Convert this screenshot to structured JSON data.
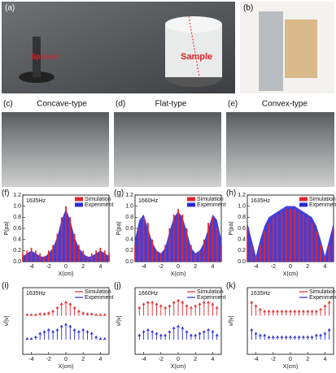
{
  "photos": [
    {
      "label": "(a)",
      "annotations": [
        "Speaker",
        "Sample"
      ]
    },
    {
      "label": "(b)"
    },
    {
      "label": "(c)",
      "title": "Concave-type"
    },
    {
      "label": "(d)",
      "title": "Flat-type"
    },
    {
      "label": "(e)",
      "title": "Convex-type"
    }
  ],
  "chart_data": [
    {
      "type": "bar_area",
      "label": "(f)",
      "annotation": "1635Hz",
      "xlabel": "X(cm)",
      "ylabel": "P(pa)",
      "x": [
        -5,
        -4.5,
        -4,
        -3.5,
        -3,
        -2.5,
        -2,
        -1.5,
        -1,
        -0.5,
        0,
        0.5,
        1,
        1.5,
        2,
        2.5,
        3,
        3.5,
        4,
        4.5,
        5
      ],
      "series": [
        {
          "name": "Simulation",
          "color": "#e3262b",
          "values": [
            0.15,
            0.2,
            0.25,
            0.2,
            0.15,
            0.1,
            0.2,
            0.3,
            0.5,
            0.8,
            1.0,
            0.8,
            0.5,
            0.3,
            0.2,
            0.1,
            0.15,
            0.2,
            0.25,
            0.2,
            0.15
          ]
        },
        {
          "name": "Experiment",
          "color": "#2a2ad6",
          "values": [
            0.1,
            0.15,
            0.2,
            0.15,
            0.1,
            0.08,
            0.15,
            0.25,
            0.45,
            0.75,
            0.95,
            0.75,
            0.45,
            0.25,
            0.15,
            0.08,
            0.1,
            0.15,
            0.2,
            0.15,
            0.1
          ]
        }
      ],
      "xlim": [
        -5,
        5
      ],
      "ylim": [
        0,
        1.2
      ],
      "xticks": [
        -4,
        -2,
        0,
        2,
        4
      ],
      "yticks": [
        {
          "value": 0,
          "label": "0.0"
        },
        0.2,
        0.4,
        0.6,
        0.8,
        {
          "value": 1,
          "label": "1.0"
        },
        1.2
      ]
    },
    {
      "type": "bar_area",
      "label": "(g)",
      "annotation": "1660Hz",
      "xlabel": "X(cm)",
      "ylabel": "P(pa)",
      "x": [
        -5,
        -4.5,
        -4,
        -3.5,
        -3,
        -2.5,
        -2,
        -1.5,
        -1,
        -0.5,
        0,
        0.5,
        1,
        1.5,
        2,
        2.5,
        3,
        3.5,
        4,
        4.5,
        5
      ],
      "series": [
        {
          "name": "Simulation",
          "color": "#e3262b",
          "values": [
            0.3,
            0.6,
            0.8,
            0.7,
            0.4,
            0.2,
            0.15,
            0.3,
            0.6,
            0.85,
            0.95,
            0.85,
            0.6,
            0.3,
            0.15,
            0.2,
            0.4,
            0.7,
            0.8,
            0.6,
            0.3
          ]
        },
        {
          "name": "Experiment",
          "color": "#2a2ad6",
          "values": [
            0.4,
            0.75,
            0.85,
            0.6,
            0.35,
            0.2,
            0.15,
            0.25,
            0.55,
            0.8,
            0.9,
            0.8,
            0.55,
            0.25,
            0.15,
            0.2,
            0.35,
            0.6,
            0.85,
            0.75,
            0.4
          ]
        }
      ],
      "xlim": [
        -5,
        5
      ],
      "ylim": [
        0,
        1.2
      ],
      "xticks": [
        -4,
        -2,
        0,
        2,
        4
      ],
      "yticks": [
        {
          "value": 0,
          "label": "0.0"
        },
        0.2,
        0.4,
        0.6,
        0.8,
        {
          "value": 1,
          "label": "1.0"
        },
        1.2
      ]
    },
    {
      "type": "bar_area",
      "label": "(h)",
      "annotation": "1635Hz",
      "xlabel": "X(cm)",
      "ylabel": "P(pa)",
      "x": [
        -5,
        -4.5,
        -4,
        -3.5,
        -3,
        -2.5,
        -2,
        -1.5,
        -1,
        -0.5,
        0,
        0.5,
        1,
        1.5,
        2,
        2.5,
        3,
        3.5,
        4,
        4.5,
        5
      ],
      "series": [
        {
          "name": "Simulation",
          "color": "#e3262b",
          "values": [
            0.6,
            0.3,
            0.1,
            0.3,
            0.55,
            0.7,
            0.8,
            0.85,
            0.9,
            0.95,
            0.95,
            0.95,
            0.9,
            0.85,
            0.8,
            0.7,
            0.55,
            0.3,
            0.1,
            0.3,
            0.6
          ]
        },
        {
          "name": "Experiment",
          "color": "#2a2ad6",
          "values": [
            0.7,
            0.4,
            0.1,
            0.4,
            0.65,
            0.8,
            0.85,
            0.9,
            0.95,
            1.0,
            1.0,
            1.0,
            0.95,
            0.9,
            0.85,
            0.8,
            0.65,
            0.4,
            0.1,
            0.4,
            0.7
          ]
        }
      ],
      "xlim": [
        -5,
        5
      ],
      "ylim": [
        0,
        1.2
      ],
      "xticks": [
        -4,
        -2,
        0,
        2,
        4
      ],
      "yticks": [
        {
          "value": 0,
          "label": "0.0"
        },
        0.2,
        0.4,
        0.6,
        0.8,
        {
          "value": 1,
          "label": "1.0"
        },
        1.2
      ]
    },
    {
      "type": "quiver",
      "label": "(i)",
      "annotation": "1635Hz",
      "xlabel": "X(cm)",
      "ylabel": "v/|v|",
      "x": [
        -4.5,
        -4,
        -3.5,
        -3,
        -2.5,
        -2,
        -1.5,
        -1,
        -0.5,
        0,
        0.5,
        1,
        1.5,
        2,
        2.5,
        3,
        3.5,
        4,
        4.5
      ],
      "series": [
        {
          "name": "Simulation",
          "color": "#e3262b",
          "values": [
            0.1,
            0.1,
            0.1,
            0.15,
            0.15,
            0.2,
            0.3,
            0.5,
            0.7,
            0.8,
            0.7,
            0.5,
            0.3,
            0.2,
            0.15,
            0.15,
            0.1,
            0.1,
            0.1
          ]
        },
        {
          "name": "Experiment",
          "color": "#2a2ad6",
          "values": [
            0.1,
            0.1,
            0.2,
            0.4,
            0.5,
            0.6,
            0.5,
            0.6,
            0.8,
            0.9,
            0.8,
            0.6,
            0.5,
            0.6,
            0.5,
            0.4,
            0.2,
            0.1,
            0.1
          ]
        }
      ],
      "xlim": [
        -5,
        5
      ],
      "xticks": [
        -4,
        -2,
        0,
        2,
        4
      ]
    },
    {
      "type": "quiver",
      "label": "(j)",
      "annotation": "1660Hz",
      "xlabel": "X(cm)",
      "ylabel": "v/|v|",
      "x": [
        -4.5,
        -4,
        -3.5,
        -3,
        -2.5,
        -2,
        -1.5,
        -1,
        -0.5,
        0,
        0.5,
        1,
        1.5,
        2,
        2.5,
        3,
        3.5,
        4,
        4.5
      ],
      "series": [
        {
          "name": "Simulation",
          "color": "#e3262b",
          "values": [
            0.5,
            0.7,
            0.8,
            0.8,
            0.7,
            0.6,
            0.5,
            0.6,
            0.8,
            0.9,
            0.8,
            0.6,
            0.5,
            0.6,
            0.7,
            0.8,
            0.8,
            0.7,
            0.5
          ]
        },
        {
          "name": "Experiment",
          "color": "#2a2ad6",
          "values": [
            0.3,
            0.5,
            0.6,
            0.5,
            0.4,
            0.3,
            0.3,
            0.5,
            0.7,
            0.8,
            0.7,
            0.5,
            0.3,
            0.3,
            0.4,
            0.5,
            0.6,
            0.5,
            0.3
          ]
        }
      ],
      "xlim": [
        -5,
        5
      ],
      "xticks": [
        -4,
        -2,
        0,
        2,
        4
      ]
    },
    {
      "type": "quiver",
      "label": "(k)",
      "annotation": "1635Hz",
      "xlabel": "X(cm)",
      "ylabel": "v/|v|",
      "x": [
        -4.5,
        -4,
        -3.5,
        -3,
        -2.5,
        -2,
        -1.5,
        -1,
        -0.5,
        0,
        0.5,
        1,
        1.5,
        2,
        2.5,
        3,
        3.5,
        4,
        4.5
      ],
      "series": [
        {
          "name": "Simulation",
          "color": "#e3262b",
          "values": [
            0.8,
            0.6,
            0.4,
            0.3,
            0.3,
            0.3,
            0.3,
            0.3,
            0.3,
            0.3,
            0.3,
            0.3,
            0.3,
            0.3,
            0.3,
            0.3,
            0.4,
            0.6,
            0.8
          ]
        },
        {
          "name": "Experiment",
          "color": "#2a2ad6",
          "values": [
            0.6,
            0.4,
            0.3,
            0.3,
            0.2,
            0.2,
            0.2,
            0.2,
            0.2,
            0.2,
            0.2,
            0.2,
            0.2,
            0.2,
            0.2,
            0.3,
            0.3,
            0.4,
            0.6
          ]
        }
      ],
      "xlim": [
        -5,
        5
      ],
      "xticks": [
        -4,
        -2,
        0,
        2,
        4
      ]
    }
  ]
}
